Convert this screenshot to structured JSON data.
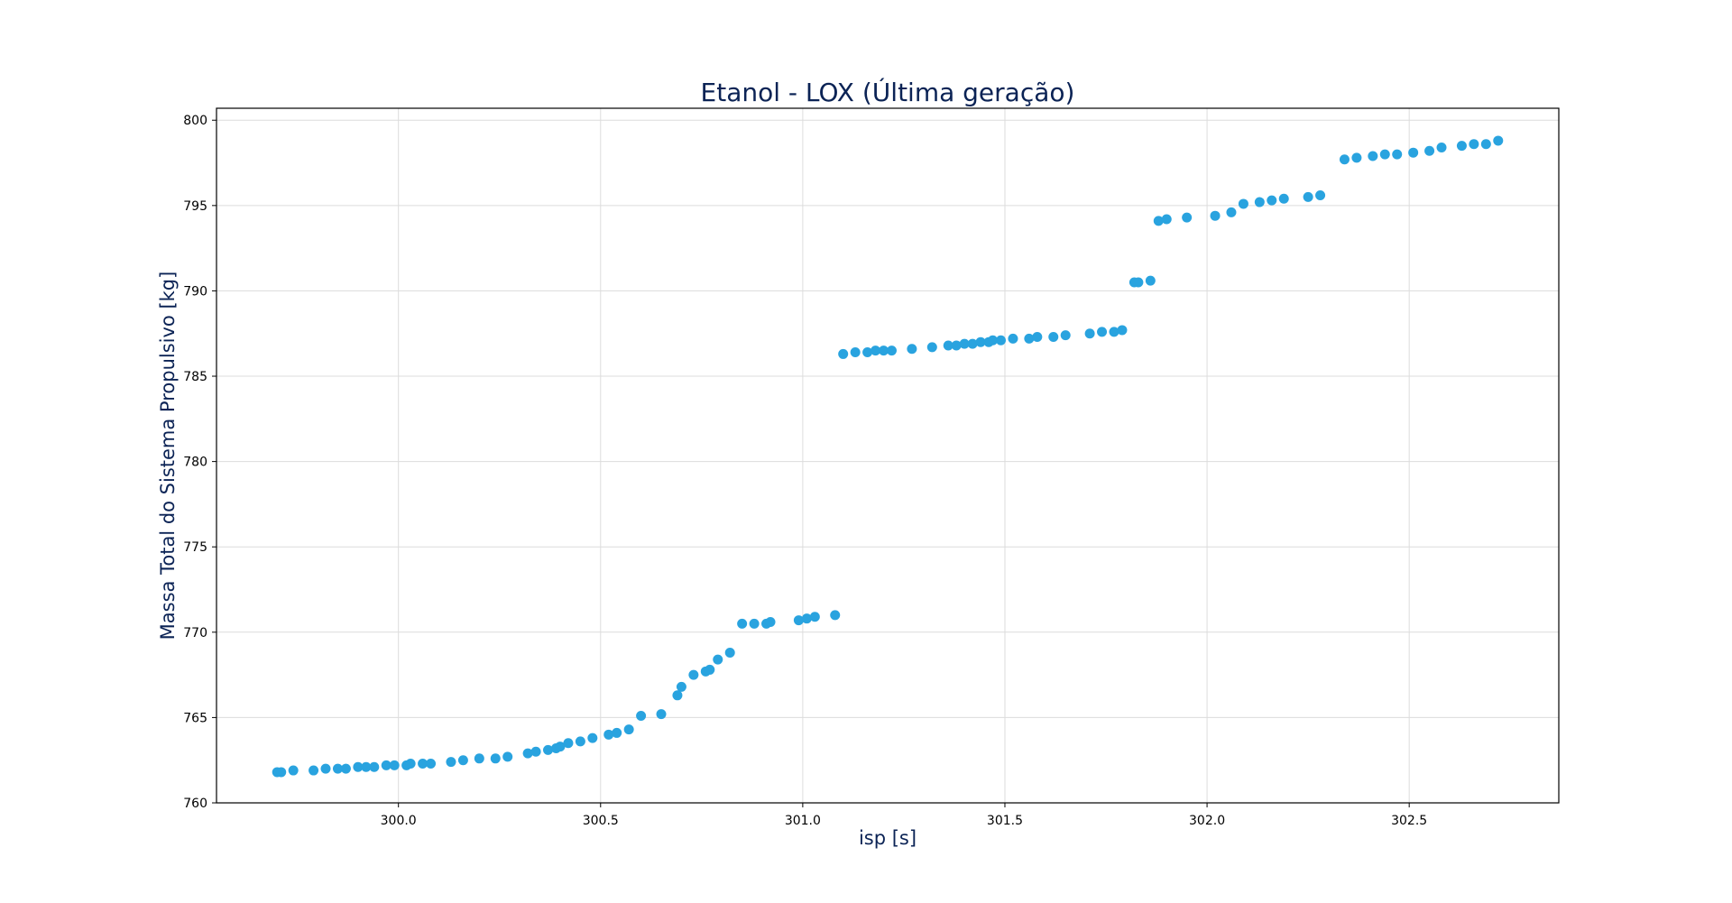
{
  "chart_data": {
    "type": "scatter",
    "title": "Etanol - LOX (Última geração)",
    "xlabel": "isp [s]",
    "ylabel": "Massa Total do Sistema Propulsivo [kg]",
    "xlim": [
      299.55,
      302.87
    ],
    "ylim": [
      760,
      800.7
    ],
    "xticks": [
      300.0,
      300.5,
      301.0,
      301.5,
      302.0,
      302.5
    ],
    "xtick_labels": [
      "300.0",
      "300.5",
      "301.0",
      "301.5",
      "302.0",
      "302.5"
    ],
    "yticks": [
      760,
      765,
      770,
      775,
      780,
      785,
      790,
      795,
      800
    ],
    "ytick_labels": [
      "760",
      "765",
      "770",
      "775",
      "780",
      "785",
      "790",
      "795",
      "800"
    ],
    "grid": true,
    "marker_color": "#29a3df",
    "series": [
      {
        "points": [
          [
            299.7,
            761.8
          ],
          [
            299.71,
            761.8
          ],
          [
            299.74,
            761.9
          ],
          [
            299.79,
            761.9
          ],
          [
            299.82,
            762.0
          ],
          [
            299.85,
            762.0
          ],
          [
            299.87,
            762.0
          ],
          [
            299.9,
            762.1
          ],
          [
            299.92,
            762.1
          ],
          [
            299.94,
            762.1
          ],
          [
            299.97,
            762.2
          ],
          [
            299.99,
            762.2
          ],
          [
            300.02,
            762.2
          ],
          [
            300.03,
            762.3
          ],
          [
            300.06,
            762.3
          ],
          [
            300.08,
            762.3
          ],
          [
            300.13,
            762.4
          ],
          [
            300.16,
            762.5
          ],
          [
            300.2,
            762.6
          ],
          [
            300.24,
            762.6
          ],
          [
            300.27,
            762.7
          ],
          [
            300.32,
            762.9
          ],
          [
            300.34,
            763.0
          ],
          [
            300.37,
            763.1
          ],
          [
            300.39,
            763.2
          ],
          [
            300.4,
            763.3
          ],
          [
            300.42,
            763.5
          ],
          [
            300.45,
            763.6
          ],
          [
            300.48,
            763.8
          ],
          [
            300.52,
            764.0
          ],
          [
            300.54,
            764.1
          ],
          [
            300.57,
            764.3
          ],
          [
            300.6,
            765.1
          ],
          [
            300.65,
            765.2
          ],
          [
            300.69,
            766.3
          ],
          [
            300.7,
            766.8
          ],
          [
            300.73,
            767.5
          ],
          [
            300.76,
            767.7
          ],
          [
            300.77,
            767.8
          ],
          [
            300.79,
            768.4
          ],
          [
            300.82,
            768.8
          ],
          [
            300.85,
            770.5
          ],
          [
            300.88,
            770.5
          ],
          [
            300.91,
            770.5
          ],
          [
            300.92,
            770.6
          ],
          [
            300.99,
            770.7
          ],
          [
            301.01,
            770.8
          ],
          [
            301.03,
            770.9
          ],
          [
            301.08,
            771.0
          ],
          [
            301.1,
            786.3
          ],
          [
            301.13,
            786.4
          ],
          [
            301.16,
            786.4
          ],
          [
            301.18,
            786.5
          ],
          [
            301.2,
            786.5
          ],
          [
            301.22,
            786.5
          ],
          [
            301.27,
            786.6
          ],
          [
            301.32,
            786.7
          ],
          [
            301.36,
            786.8
          ],
          [
            301.38,
            786.8
          ],
          [
            301.4,
            786.9
          ],
          [
            301.42,
            786.9
          ],
          [
            301.44,
            787.0
          ],
          [
            301.46,
            787.0
          ],
          [
            301.47,
            787.1
          ],
          [
            301.49,
            787.1
          ],
          [
            301.52,
            787.2
          ],
          [
            301.56,
            787.2
          ],
          [
            301.58,
            787.3
          ],
          [
            301.62,
            787.3
          ],
          [
            301.65,
            787.4
          ],
          [
            301.71,
            787.5
          ],
          [
            301.74,
            787.6
          ],
          [
            301.77,
            787.6
          ],
          [
            301.79,
            787.7
          ],
          [
            301.82,
            790.5
          ],
          [
            301.83,
            790.5
          ],
          [
            301.86,
            790.6
          ],
          [
            301.88,
            794.1
          ],
          [
            301.9,
            794.2
          ],
          [
            301.95,
            794.3
          ],
          [
            302.02,
            794.4
          ],
          [
            302.06,
            794.6
          ],
          [
            302.09,
            795.1
          ],
          [
            302.13,
            795.2
          ],
          [
            302.16,
            795.3
          ],
          [
            302.19,
            795.4
          ],
          [
            302.25,
            795.5
          ],
          [
            302.28,
            795.6
          ],
          [
            302.34,
            797.7
          ],
          [
            302.37,
            797.8
          ],
          [
            302.41,
            797.9
          ],
          [
            302.44,
            798.0
          ],
          [
            302.47,
            798.0
          ],
          [
            302.51,
            798.1
          ],
          [
            302.55,
            798.2
          ],
          [
            302.58,
            798.4
          ],
          [
            302.63,
            798.5
          ],
          [
            302.66,
            798.6
          ],
          [
            302.69,
            798.6
          ],
          [
            302.72,
            798.8
          ]
        ]
      }
    ]
  }
}
